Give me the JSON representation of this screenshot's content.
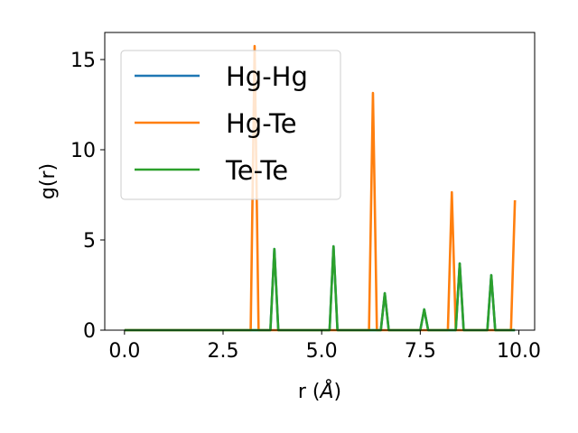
{
  "chart_data": {
    "type": "line",
    "xlabel": "r (",
    "xlabel_symbol": "Å",
    "xlabel_suffix": ")",
    "ylabel": "g(r)",
    "xlim": [
      -0.5,
      10.4
    ],
    "ylim": [
      0,
      16.5
    ],
    "xticks": [
      0.0,
      2.5,
      5.0,
      7.5,
      10.0
    ],
    "xtick_labels": [
      "0.0",
      "2.5",
      "5.0",
      "7.5",
      "10.0"
    ],
    "yticks": [
      0,
      5,
      10,
      15
    ],
    "ytick_labels": [
      "0",
      "5",
      "10",
      "15"
    ],
    "grid": false,
    "legend_position": "upper-left",
    "series": [
      {
        "name": "Hg-Hg",
        "color": "#1f77b4",
        "x": [
          0.0,
          3.7,
          3.8,
          3.9,
          5.2,
          5.3,
          5.4,
          6.5,
          6.6,
          6.7,
          7.5,
          7.6,
          7.7,
          8.4,
          8.5,
          8.6,
          9.2,
          9.3,
          9.4,
          9.9
        ],
        "y": [
          0,
          0,
          4.5,
          0,
          0,
          4.65,
          0,
          0,
          2.05,
          0,
          0,
          1.15,
          0,
          0,
          3.7,
          0,
          0,
          3.05,
          0,
          0
        ]
      },
      {
        "name": "Hg-Te",
        "color": "#ff7f0e",
        "x": [
          0.0,
          3.2,
          3.3,
          3.4,
          6.2,
          6.3,
          6.4,
          8.2,
          8.3,
          8.4,
          9.8,
          9.9
        ],
        "y": [
          0,
          0,
          15.75,
          0,
          0,
          13.15,
          0,
          0,
          7.65,
          0,
          0,
          7.2
        ]
      },
      {
        "name": "Te-Te",
        "color": "#2ca02c",
        "x": [
          0.0,
          3.7,
          3.8,
          3.9,
          5.2,
          5.3,
          5.4,
          6.5,
          6.6,
          6.7,
          7.5,
          7.6,
          7.7,
          8.4,
          8.5,
          8.6,
          9.2,
          9.3,
          9.4,
          9.9
        ],
        "y": [
          0,
          0,
          4.5,
          0,
          0,
          4.65,
          0,
          0,
          2.05,
          0,
          0,
          1.15,
          0,
          0,
          3.7,
          0,
          0,
          3.05,
          0,
          0
        ]
      }
    ]
  }
}
